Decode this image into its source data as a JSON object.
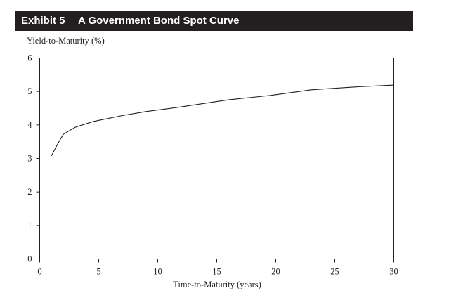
{
  "exhibit": {
    "label": "Exhibit 5",
    "title": "A Government Bond Spot Curve"
  },
  "chart_data": {
    "type": "line",
    "title": "A Government Bond Spot Curve",
    "xlabel": "Time-to-Maturity (years)",
    "ylabel": "Yield-to-Maturity (%)",
    "xlim": [
      0,
      30
    ],
    "ylim": [
      0,
      6
    ],
    "xticks": [
      0,
      5,
      10,
      15,
      20,
      25,
      30
    ],
    "yticks": [
      0,
      1,
      2,
      3,
      4,
      5,
      6
    ],
    "grid": false,
    "legend": "none",
    "series": [
      {
        "x": [
          1,
          1.5,
          2,
          3,
          4.5,
          7,
          9,
          12,
          16,
          19.5,
          23,
          27,
          30
        ],
        "y": [
          3.08,
          3.42,
          3.72,
          3.93,
          4.1,
          4.28,
          4.4,
          4.54,
          4.75,
          4.88,
          5.05,
          5.14,
          5.19
        ]
      }
    ],
    "colors": {
      "line": "#231f20",
      "axis": "#231f20"
    }
  }
}
